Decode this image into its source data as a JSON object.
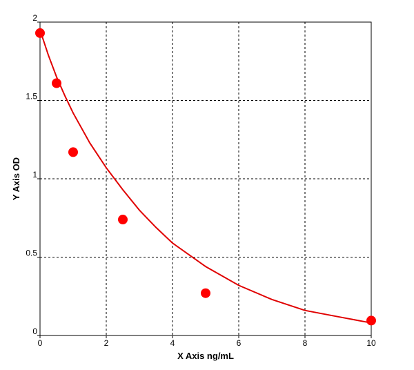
{
  "chart_data": {
    "type": "scatter",
    "title": "",
    "xlabel": "X Axis ng/mL",
    "ylabel": "Y Axis OD",
    "xlim": [
      0,
      10
    ],
    "ylim": [
      0,
      2
    ],
    "xticks": [
      0,
      2,
      4,
      6,
      8,
      10
    ],
    "yticks": [
      0,
      0.5,
      1,
      1.5,
      2
    ],
    "grid": true,
    "grid_style": "dashed",
    "series": [
      {
        "points": [
          {
            "x": 0,
            "y": 1.93
          },
          {
            "x": 0.5,
            "y": 1.61
          },
          {
            "x": 1,
            "y": 1.17
          },
          {
            "x": 2.5,
            "y": 0.74
          },
          {
            "x": 5,
            "y": 0.27
          },
          {
            "x": 10,
            "y": 0.095
          }
        ],
        "color": "#ff0000"
      }
    ],
    "fit_curve": {
      "color": "#e00000",
      "x": [
        0,
        0.25,
        0.5,
        0.75,
        1,
        1.5,
        2,
        2.5,
        3,
        3.5,
        4,
        5,
        6,
        7,
        8,
        9,
        10
      ],
      "y": [
        1.95,
        1.79,
        1.65,
        1.53,
        1.42,
        1.23,
        1.07,
        0.93,
        0.8,
        0.69,
        0.59,
        0.44,
        0.32,
        0.23,
        0.16,
        0.12,
        0.08
      ]
    }
  }
}
